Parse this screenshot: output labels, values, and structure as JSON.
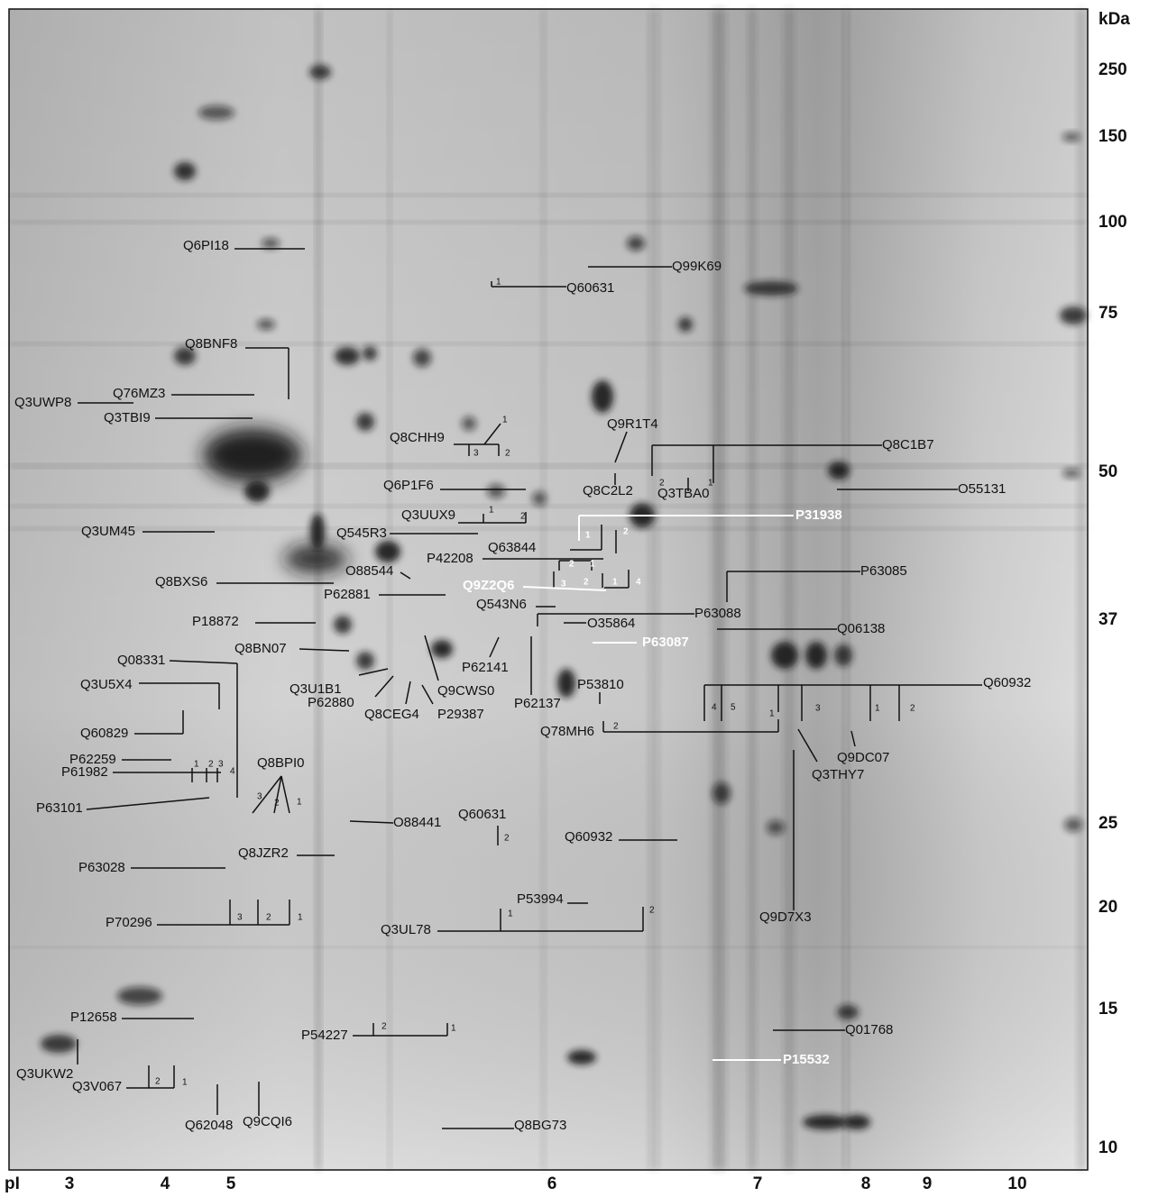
{
  "mw_axis": {
    "title": "kDa",
    "labels": [
      "250",
      "150",
      "100",
      "75",
      "50",
      "37",
      "25",
      "20",
      "15",
      "10"
    ]
  },
  "pi_axis": {
    "title": "pI",
    "labels": [
      "3",
      "4",
      "5",
      "6",
      "7",
      "8",
      "9",
      "10"
    ]
  },
  "proteins": [
    "Q6PI18",
    "Q99K69",
    "Q60631",
    "Q8BNF8",
    "Q76MZ3",
    "Q3UWP8",
    "Q3TBI9",
    "Q8CHH9",
    "Q9R1T4",
    "Q8C1B7",
    "Q6P1F6",
    "Q8C2L2",
    "Q3TBA0",
    "O55131",
    "Q3UUX9",
    "P31938",
    "Q3UM45",
    "Q545R3",
    "Q63844",
    "P42208",
    "O88544",
    "P63085",
    "Q8BXS6",
    "Q9Z2Q6",
    "P62881",
    "Q543N6",
    "P63088",
    "P18872",
    "O35864",
    "Q06138",
    "Q8BN07",
    "P63087",
    "Q08331",
    "P62141",
    "Q3U1B1",
    "Q9CWS0",
    "Q3U5X4",
    "P53810",
    "Q60932",
    "P62880",
    "P62137",
    "Q8CEG4",
    "P29387",
    "Q78MH6",
    "Q60829",
    "Q9DC07",
    "P62259",
    "Q8BPI0",
    "P61982",
    "Q3THY7",
    "P63101",
    "Q60631",
    "O88441",
    "Q60932",
    "Q8JZR2",
    "P63028",
    "P53994",
    "Q9D7X3",
    "P70296",
    "Q3UL78",
    "P12658",
    "Q01768",
    "P54227",
    "P15532",
    "Q3UKW2",
    "Q3V067",
    "Q62048",
    "Q9CQI6",
    "Q8BG73"
  ],
  "spot_numbers": [
    "1",
    "1",
    "3",
    "2",
    "2",
    "1",
    "1",
    "2",
    "1",
    "2",
    "2",
    "1",
    "3",
    "2",
    "1",
    "4",
    "4",
    "5",
    "1",
    "3",
    "1",
    "2",
    "2",
    "1",
    "2",
    "3",
    "4",
    "3",
    "2",
    "1",
    "2",
    "3",
    "2",
    "1",
    "1",
    "2",
    "2",
    "1",
    "2",
    "1"
  ]
}
